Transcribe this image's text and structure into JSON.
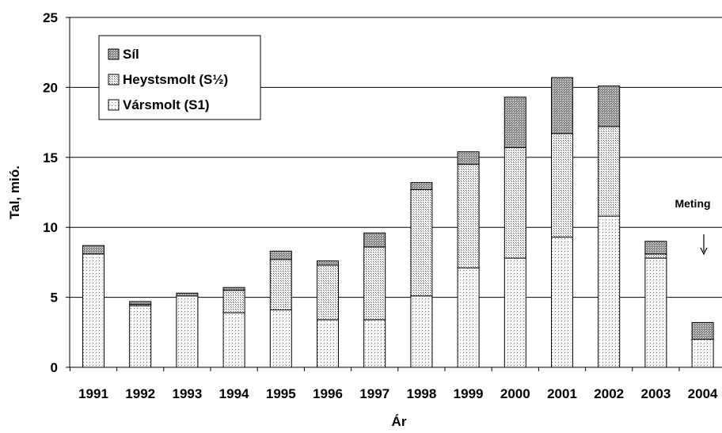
{
  "chart_data": {
    "type": "bar",
    "stacked": true,
    "categories": [
      "1991",
      "1992",
      "1993",
      "1994",
      "1995",
      "1996",
      "1997",
      "1998",
      "1999",
      "2000",
      "2001",
      "2002",
      "2003",
      "2004"
    ],
    "series": [
      {
        "name": "Vársmolt (S1)",
        "pattern": "light-dots",
        "values": [
          8.1,
          4.4,
          5.1,
          3.9,
          4.1,
          3.4,
          3.4,
          5.1,
          7.1,
          7.8,
          9.3,
          10.8,
          7.8,
          2.0
        ]
      },
      {
        "name": "Heystsmolt (S½)",
        "pattern": "medium-dots",
        "values": [
          0.0,
          0.1,
          0.0,
          1.6,
          3.6,
          3.9,
          5.2,
          7.6,
          7.4,
          7.9,
          7.4,
          6.4,
          0.3,
          0.0
        ]
      },
      {
        "name": "Síl",
        "pattern": "dark-dots",
        "values": [
          0.6,
          0.2,
          0.2,
          0.2,
          0.6,
          0.3,
          1.0,
          0.5,
          0.9,
          3.6,
          4.0,
          2.9,
          0.9,
          1.2
        ]
      }
    ],
    "legend_order": [
      "Síl",
      "Heystsmolt (S½)",
      "Vársmolt (S1)"
    ],
    "xlabel": "Ár",
    "ylabel": "Tal, mió.",
    "ylim": [
      0,
      25
    ],
    "yticks": [
      "0",
      "5",
      "10",
      "15",
      "20",
      "25"
    ],
    "grid": "horizontal",
    "legend_position": "top-left",
    "annotation": {
      "text": "Meting",
      "target_category": "2004"
    }
  }
}
